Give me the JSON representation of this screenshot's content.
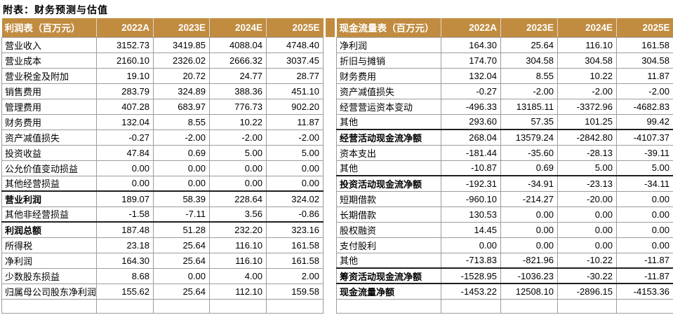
{
  "title": "附表：财务预测与估值",
  "colors": {
    "header_bg": "#C18C40",
    "header_text": "#FFFFFF",
    "grid_line": "#9C9C9C",
    "bold_row_line": "#1F1F1F"
  },
  "income_table": {
    "header": {
      "label": "利润表（百万元）",
      "cols": [
        "2022A",
        "2023E",
        "2024E",
        "2025E"
      ]
    },
    "rows": [
      {
        "label": "营业收入",
        "values": [
          "3152.73",
          "3419.85",
          "4088.04",
          "4748.40"
        ],
        "bold": false
      },
      {
        "label": "营业成本",
        "values": [
          "2160.10",
          "2326.02",
          "2666.32",
          "3037.45"
        ],
        "bold": false
      },
      {
        "label": "营业税金及附加",
        "values": [
          "19.10",
          "20.72",
          "24.77",
          "28.77"
        ],
        "bold": false
      },
      {
        "label": "销售费用",
        "values": [
          "283.79",
          "324.89",
          "388.36",
          "451.10"
        ],
        "bold": false
      },
      {
        "label": "管理费用",
        "values": [
          "407.28",
          "683.97",
          "776.73",
          "902.20"
        ],
        "bold": false
      },
      {
        "label": "财务费用",
        "values": [
          "132.04",
          "8.55",
          "10.22",
          "11.87"
        ],
        "bold": false
      },
      {
        "label": "资产减值损失",
        "values": [
          "-0.27",
          "-2.00",
          "-2.00",
          "-2.00"
        ],
        "bold": false
      },
      {
        "label": "投资收益",
        "values": [
          "47.84",
          "0.69",
          "5.00",
          "5.00"
        ],
        "bold": false
      },
      {
        "label": "公允价值变动损益",
        "values": [
          "0.00",
          "0.00",
          "0.00",
          "0.00"
        ],
        "bold": false
      },
      {
        "label": "其他经营损益",
        "values": [
          "0.00",
          "0.00",
          "0.00",
          "0.00"
        ],
        "bold": false
      },
      {
        "label": "营业利润",
        "values": [
          "189.07",
          "58.39",
          "228.64",
          "324.02"
        ],
        "bold": true
      },
      {
        "label": "其他非经营损益",
        "values": [
          "-1.58",
          "-7.11",
          "3.56",
          "-0.86"
        ],
        "bold": false
      },
      {
        "label": "利润总额",
        "values": [
          "187.48",
          "51.28",
          "232.20",
          "323.16"
        ],
        "bold": true
      },
      {
        "label": "所得税",
        "values": [
          "23.18",
          "25.64",
          "116.10",
          "161.58"
        ],
        "bold": false
      },
      {
        "label": "净利润",
        "values": [
          "164.30",
          "25.64",
          "116.10",
          "161.58"
        ],
        "bold": false
      },
      {
        "label": "少数股东损益",
        "values": [
          "8.68",
          "0.00",
          "4.00",
          "2.00"
        ],
        "bold": false
      },
      {
        "label": "归属母公司股东净利润",
        "values": [
          "155.62",
          "25.64",
          "112.10",
          "159.58"
        ],
        "bold": false
      }
    ]
  },
  "cashflow_table": {
    "header": {
      "label": "现金流量表（百万元）",
      "cols": [
        "2022A",
        "2023E",
        "2024E",
        "2025E"
      ]
    },
    "rows": [
      {
        "label": "净利润",
        "values": [
          "164.30",
          "25.64",
          "116.10",
          "161.58"
        ],
        "bold": false
      },
      {
        "label": "折旧与摊销",
        "values": [
          "174.70",
          "304.58",
          "304.58",
          "304.58"
        ],
        "bold": false
      },
      {
        "label": "财务费用",
        "values": [
          "132.04",
          "8.55",
          "10.22",
          "11.87"
        ],
        "bold": false
      },
      {
        "label": "资产减值损失",
        "values": [
          "-0.27",
          "-2.00",
          "-2.00",
          "-2.00"
        ],
        "bold": false
      },
      {
        "label": "经营营运资本变动",
        "values": [
          "-496.33",
          "13185.11",
          "-3372.96",
          "-4682.83"
        ],
        "bold": false
      },
      {
        "label": "其他",
        "values": [
          "293.60",
          "57.35",
          "101.25",
          "99.42"
        ],
        "bold": false
      },
      {
        "label": "经营活动现金流净额",
        "values": [
          "268.04",
          "13579.24",
          "-2842.80",
          "-4107.37"
        ],
        "bold": true
      },
      {
        "label": "资本支出",
        "values": [
          "-181.44",
          "-35.60",
          "-28.13",
          "-39.11"
        ],
        "bold": false
      },
      {
        "label": "其他",
        "values": [
          "-10.87",
          "0.69",
          "5.00",
          "5.00"
        ],
        "bold": false
      },
      {
        "label": "投资活动现金流净额",
        "values": [
          "-192.31",
          "-34.91",
          "-23.13",
          "-34.11"
        ],
        "bold": true
      },
      {
        "label": "短期借款",
        "values": [
          "-960.10",
          "-214.27",
          "-20.00",
          "0.00"
        ],
        "bold": false
      },
      {
        "label": "长期借款",
        "values": [
          "130.53",
          "0.00",
          "0.00",
          "0.00"
        ],
        "bold": false
      },
      {
        "label": "股权融资",
        "values": [
          "14.45",
          "0.00",
          "0.00",
          "0.00"
        ],
        "bold": false
      },
      {
        "label": "支付股利",
        "values": [
          "0.00",
          "0.00",
          "0.00",
          "0.00"
        ],
        "bold": false
      },
      {
        "label": "其他",
        "values": [
          "-713.83",
          "-821.96",
          "-10.22",
          "-11.87"
        ],
        "bold": false
      },
      {
        "label": "筹资活动现金流净额",
        "values": [
          "-1528.95",
          "-1036.23",
          "-30.22",
          "-11.87"
        ],
        "bold": true
      },
      {
        "label": "现金流量净额",
        "values": [
          "-1453.22",
          "12508.10",
          "-2896.15",
          "-4153.36"
        ],
        "bold": true
      }
    ]
  }
}
